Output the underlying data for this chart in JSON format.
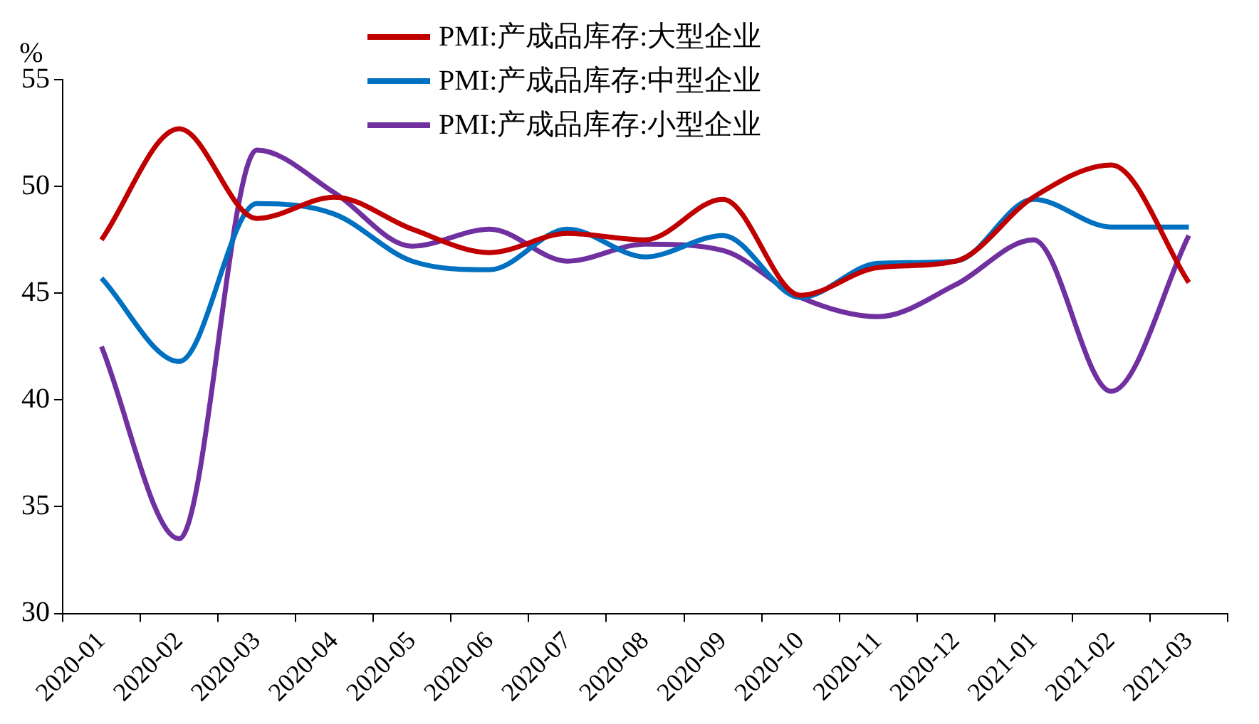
{
  "chart_data": {
    "type": "line",
    "ylabel": "%",
    "categories": [
      "2020-01",
      "2020-02",
      "2020-03",
      "2020-04",
      "2020-05",
      "2020-06",
      "2020-07",
      "2020-08",
      "2020-09",
      "2020-10",
      "2020-11",
      "2020-12",
      "2021-01",
      "2021-02",
      "2021-03"
    ],
    "series": [
      {
        "name": "PMI:产成品库存:大型企业",
        "color": "#c00000",
        "values": [
          47.5,
          52.7,
          48.5,
          49.5,
          48.0,
          46.9,
          47.8,
          47.5,
          49.4,
          44.9,
          46.2,
          46.5,
          49.5,
          51.0,
          45.5
        ]
      },
      {
        "name": "PMI:产成品库存:中型企业",
        "color": "#0070c0",
        "values": [
          45.7,
          41.8,
          49.2,
          48.7,
          46.5,
          46.1,
          48.0,
          46.7,
          47.7,
          44.8,
          46.4,
          46.5,
          49.4,
          48.1,
          48.1
        ]
      },
      {
        "name": "PMI:产成品库存:小型企业",
        "color": "#7030a0",
        "values": [
          42.5,
          33.5,
          51.7,
          49.7,
          47.2,
          48.0,
          46.5,
          47.3,
          47.0,
          44.8,
          43.9,
          45.4,
          47.5,
          40.4,
          47.7
        ]
      }
    ],
    "ylim": [
      30,
      55
    ],
    "yticks": [
      30,
      35,
      40,
      45,
      50,
      55
    ],
    "grid": false,
    "legend": "top",
    "marker": "none",
    "line_style": "solid"
  }
}
